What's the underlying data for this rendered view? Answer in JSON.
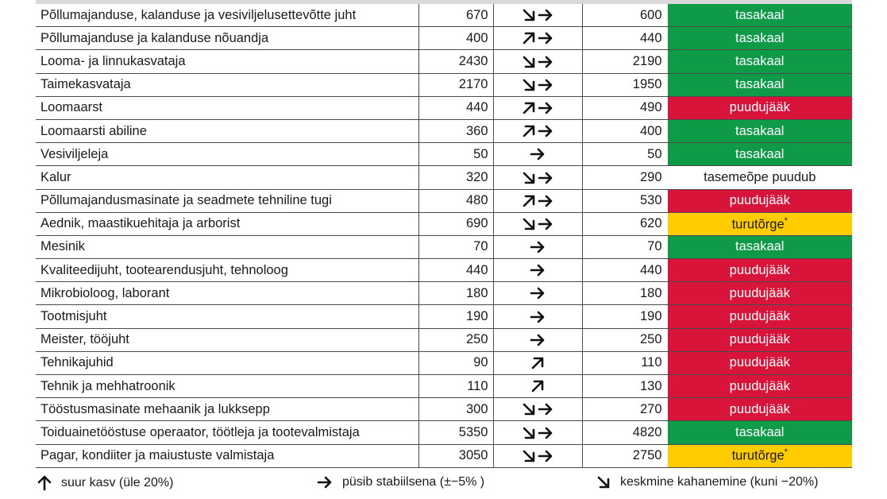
{
  "rows": [
    {
      "name": "Põllumajanduse, kalanduse ja vesiviljelusettevõtte juht",
      "value1": "670",
      "trend": [
        "down-right",
        "right"
      ],
      "value2": "600",
      "status": "tasakaal",
      "status_color": "green"
    },
    {
      "name": "Põllumajanduse ja kalanduse nõuandja",
      "value1": "400",
      "trend": [
        "up-right",
        "right"
      ],
      "value2": "440",
      "status": "tasakaal",
      "status_color": "green"
    },
    {
      "name": "Looma- ja linnukasvataja",
      "value1": "2430",
      "trend": [
        "down-right",
        "right"
      ],
      "value2": "2190",
      "status": "tasakaal",
      "status_color": "green"
    },
    {
      "name": "Taimekasvataja",
      "value1": "2170",
      "trend": [
        "down-right",
        "right"
      ],
      "value2": "1950",
      "status": "tasakaal",
      "status_color": "green"
    },
    {
      "name": "Loomaarst",
      "value1": "440",
      "trend": [
        "up-right",
        "right"
      ],
      "value2": "490",
      "status": "puudujääk",
      "status_color": "red"
    },
    {
      "name": "Loomaarsti abiline",
      "value1": "360",
      "trend": [
        "up-right",
        "right"
      ],
      "value2": "400",
      "status": "tasakaal",
      "status_color": "green"
    },
    {
      "name": "Vesiviljeleja",
      "value1": "50",
      "trend": [
        "right"
      ],
      "value2": "50",
      "status": "tasakaal",
      "status_color": "green"
    },
    {
      "name": "Kalur",
      "value1": "320",
      "trend": [
        "down-right",
        "right"
      ],
      "value2": "290",
      "status": "tasemeõpe puudub",
      "status_color": "none"
    },
    {
      "name": "Põllumajandusmasinate ja seadmete tehniline tugi",
      "value1": "480",
      "trend": [
        "up-right",
        "right"
      ],
      "value2": "530",
      "status": "puudujääk",
      "status_color": "red"
    },
    {
      "name": "Aednik, maastikuehitaja ja arborist",
      "value1": "690",
      "trend": [
        "down-right",
        "right"
      ],
      "value2": "620",
      "status": "turutõrge",
      "status_mark": "*",
      "status_color": "yellow"
    },
    {
      "name": "Mesinik",
      "value1": "70",
      "trend": [
        "right"
      ],
      "value2": "70",
      "status": "tasakaal",
      "status_color": "green"
    },
    {
      "name": "Kvaliteedijuht, tootearendusjuht, tehnoloog",
      "value1": "440",
      "trend": [
        "right"
      ],
      "value2": "440",
      "status": "puudujääk",
      "status_color": "red"
    },
    {
      "name": "Mikrobioloog, laborant",
      "value1": "180",
      "trend": [
        "right"
      ],
      "value2": "180",
      "status": "puudujääk",
      "status_color": "red"
    },
    {
      "name": "Tootmisjuht",
      "value1": "190",
      "trend": [
        "right"
      ],
      "value2": "190",
      "status": "puudujääk",
      "status_color": "red"
    },
    {
      "name": "Meister, tööjuht",
      "value1": "250",
      "trend": [
        "right"
      ],
      "value2": "250",
      "status": "puudujääk",
      "status_color": "red"
    },
    {
      "name": "Tehnikajuhid",
      "value1": "90",
      "trend": [
        "up-right"
      ],
      "value2": "110",
      "status": "puudujääk",
      "status_color": "red"
    },
    {
      "name": "Tehnik ja mehhatroonik",
      "value1": "110",
      "trend": [
        "up-right"
      ],
      "value2": "130",
      "status": "puudujääk",
      "status_color": "red"
    },
    {
      "name": "Tööstusmasinate mehaanik ja lukksepp",
      "value1": "300",
      "trend": [
        "down-right",
        "right"
      ],
      "value2": "270",
      "status": "puudujääk",
      "status_color": "red"
    },
    {
      "name": "Toiduainetööstuse operaator, töötleja ja tootevalmistaja",
      "value1": "5350",
      "trend": [
        "down-right",
        "right"
      ],
      "value2": "4820",
      "status": "tasakaal",
      "status_color": "green"
    },
    {
      "name": "Pagar, kondiiter ja maiustuste valmistaja",
      "value1": "3050",
      "trend": [
        "down-right",
        "right"
      ],
      "value2": "2750",
      "status": "turutõrge",
      "status_mark": "*",
      "status_color": "yellow"
    }
  ],
  "legend": {
    "up": {
      "icon": "up-arrow-icon",
      "label": "suur kasv (üle 20%)"
    },
    "stable": {
      "icon": "right-arrow-icon",
      "label": "püsib stabiilsena (±−5% )"
    },
    "down": {
      "icon": "down-right-arrow-icon",
      "label": "keskmine kahanemine (kuni −20%)"
    }
  },
  "colors": {
    "green": "#0f9a48",
    "red": "#d9143a",
    "yellow": "#ffcc00"
  }
}
